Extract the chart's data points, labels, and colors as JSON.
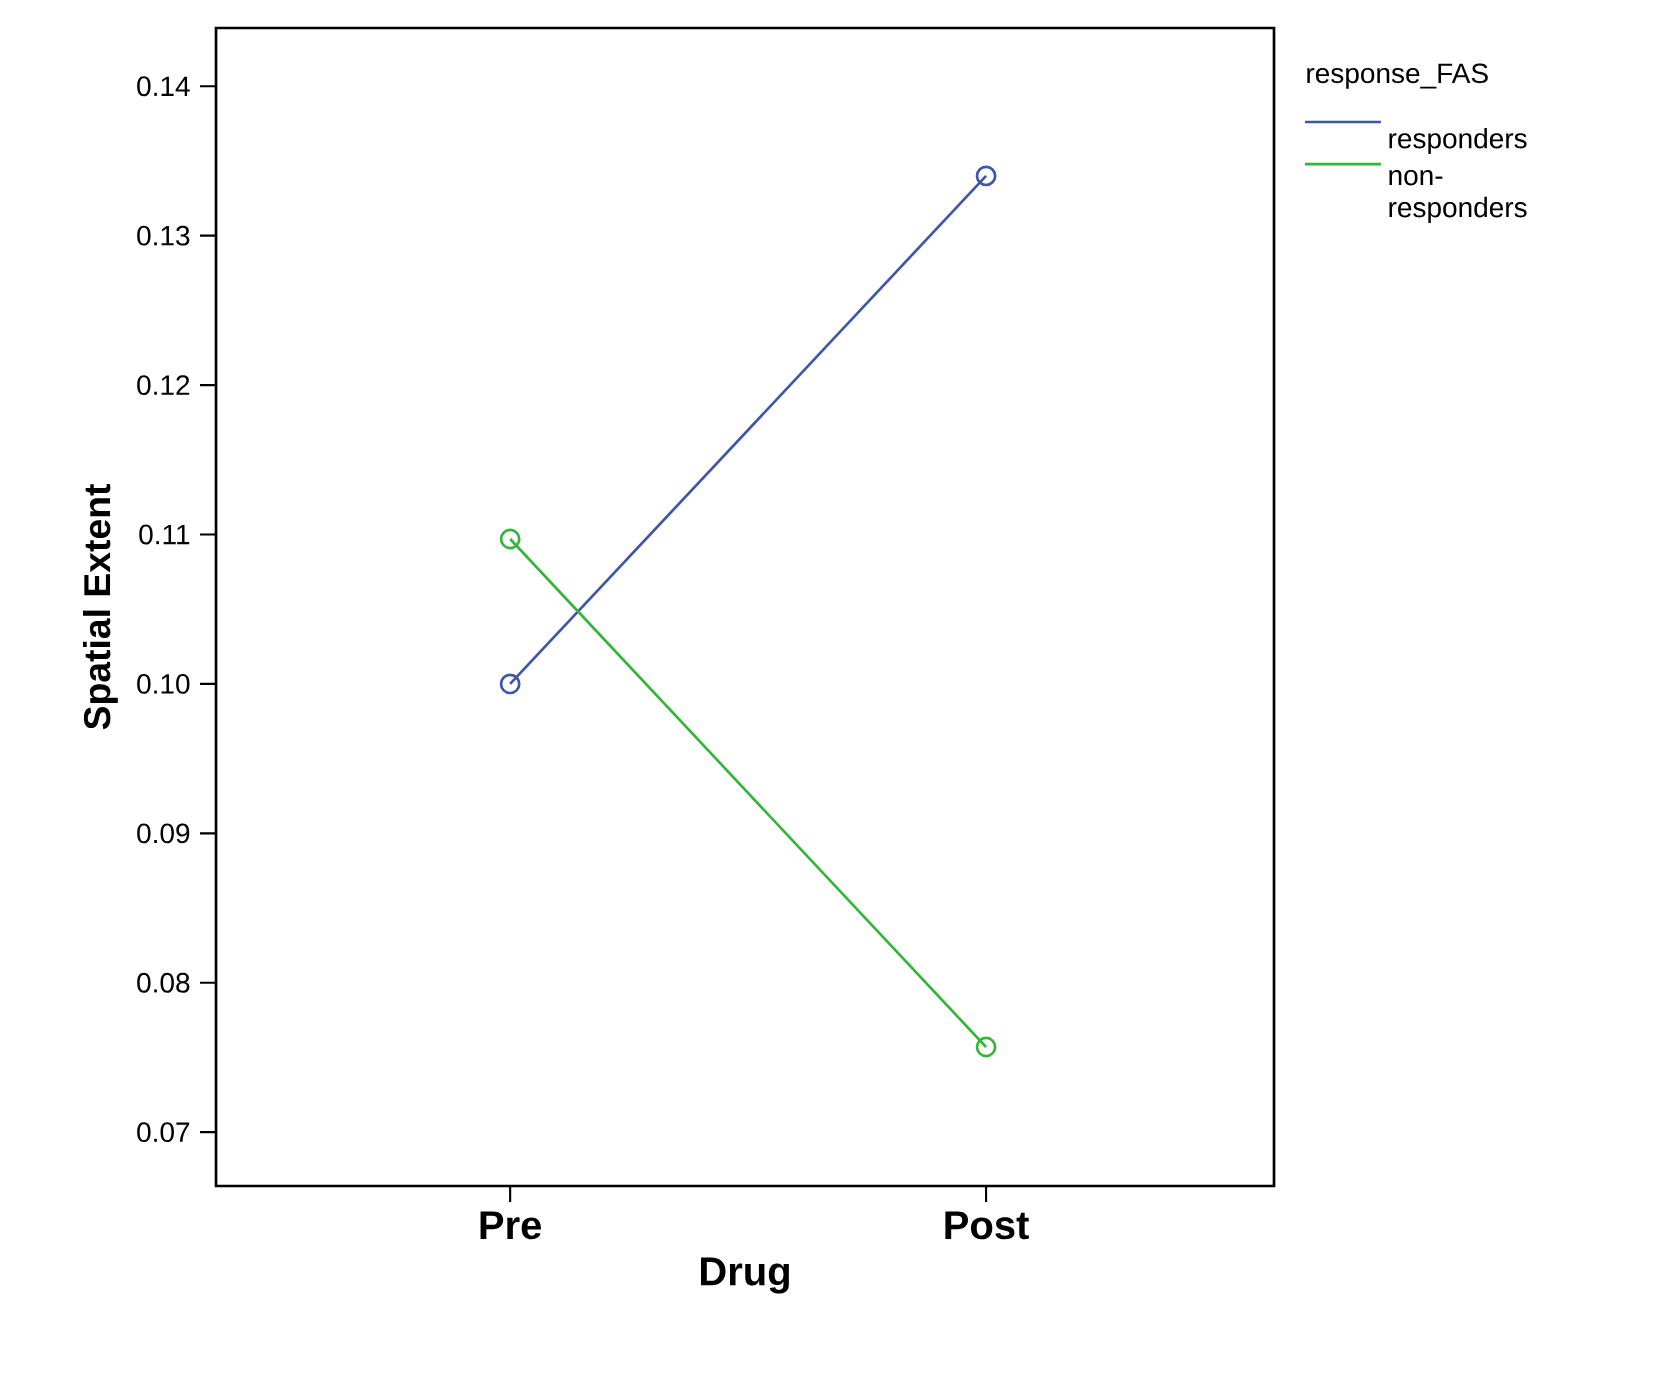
{
  "chart_data": {
    "type": "line",
    "xlabel": "Drug",
    "ylabel": "Spatial Extent",
    "legend_title": "response_FAS",
    "categories": [
      "Pre",
      "Post"
    ],
    "series": [
      {
        "name": "responders",
        "color": "#3f56a8",
        "values": [
          0.1,
          0.134
        ]
      },
      {
        "name": "non-responders",
        "color": "#33b53a",
        "values": [
          0.1097,
          0.0757
        ]
      }
    ],
    "ylim": [
      0.0664,
      0.1439
    ],
    "yticks": [
      0.07,
      0.08,
      0.09,
      {
        "value": 0.1,
        "label": "0.10"
      },
      0.11,
      0.12,
      0.13,
      0.14
    ],
    "marker": "circle",
    "line_style": "solid",
    "legend": "top right",
    "grid": false
  }
}
